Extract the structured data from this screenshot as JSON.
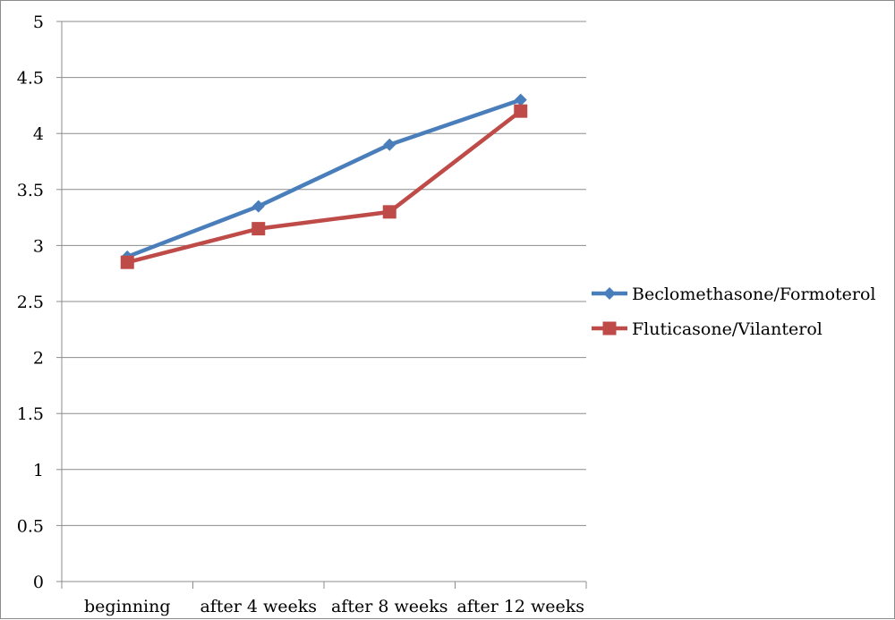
{
  "chart_data": {
    "type": "line",
    "title": "",
    "xlabel": "",
    "ylabel": "",
    "categories": [
      "beginning",
      "after 4 weeks",
      "after 8 weeks",
      "after 12 weeks"
    ],
    "ylim": [
      0,
      5
    ],
    "yticks": [
      "0",
      "0.5",
      "1",
      "1.5",
      "2",
      "2.5",
      "3",
      "3.5",
      "4",
      "4.5",
      "5"
    ],
    "grid": true,
    "legend_position": "right",
    "series": [
      {
        "name": "Beclomethasone/Formoterol",
        "values": [
          2.9,
          3.35,
          3.9,
          4.3
        ],
        "color": "#4a7ebb",
        "marker": "diamond"
      },
      {
        "name": "Fluticasone/Vilanterol",
        "values": [
          2.85,
          3.15,
          3.3,
          4.2
        ],
        "color": "#be4b48",
        "marker": "square"
      }
    ]
  }
}
